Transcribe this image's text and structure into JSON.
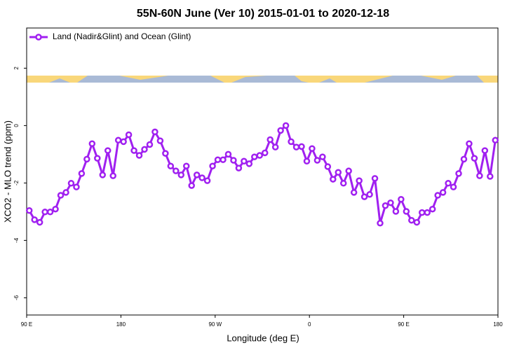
{
  "chart_data": {
    "type": "line",
    "title": "55N-60N June (Ver 10)   2015-01-01 to 2020-12-18",
    "x_label": "Longitude (deg E)",
    "y_label": "XCO2 - MLO trend (ppm)",
    "xlim": [
      90,
      540
    ],
    "ylim": [
      -6.6,
      3.4
    ],
    "xticks": [
      {
        "value": 90,
        "label": "90 E"
      },
      180,
      {
        "value": 270,
        "label": "90 W"
      },
      {
        "value": 360,
        "label": "0"
      },
      {
        "value": 450,
        "label": "90 E"
      },
      {
        "value": 540,
        "label": "180"
      }
    ],
    "yticks": [
      -6,
      -4,
      -2,
      0,
      2
    ],
    "legend": "top-left",
    "x": [
      92.5,
      97.5,
      102.5,
      107.5,
      112.5,
      117.5,
      122.5,
      127.5,
      132.5,
      137.5,
      142.5,
      147.5,
      152.5,
      157.5,
      162.5,
      167.5,
      172.5,
      177.5,
      182.5,
      187.5,
      192.5,
      197.5,
      202.5,
      207.5,
      212.5,
      217.5,
      222.5,
      227.5,
      232.5,
      237.5,
      242.5,
      247.5,
      252.5,
      257.5,
      262.5,
      267.5,
      272.5,
      277.5,
      282.5,
      287.5,
      292.5,
      297.5,
      302.5,
      307.5,
      312.5,
      317.5,
      322.5,
      327.5,
      332.5,
      337.5,
      342.5,
      347.5,
      352.5,
      357.5,
      362.5,
      367.5,
      372.5,
      377.5,
      382.5,
      387.5,
      392.5,
      397.5,
      402.5,
      407.5,
      412.5,
      417.5,
      422.5,
      427.5,
      432.5,
      437.5,
      442.5,
      447.5,
      452.5,
      457.5,
      462.5,
      467.5,
      472.5,
      477.5,
      482.5,
      487.5,
      492.5,
      497.5,
      502.5,
      507.5,
      512.5,
      517.5,
      522.5,
      527.5,
      532.5,
      537.5
    ],
    "series": [
      {
        "name": "Land (Nadir&Glint) and Ocean (Glint)",
        "color": "#a020f0",
        "values": [
          -2.96,
          -3.28,
          -3.37,
          -3.01,
          -3.01,
          -2.91,
          -2.43,
          -2.33,
          -2.01,
          -2.14,
          -1.67,
          -1.17,
          -0.63,
          -1.14,
          -1.72,
          -0.87,
          -1.75,
          -0.51,
          -0.56,
          -0.32,
          -0.87,
          -1.04,
          -0.83,
          -0.66,
          -0.22,
          -0.53,
          -0.97,
          -1.41,
          -1.58,
          -1.72,
          -1.41,
          -2.09,
          -1.72,
          -1.82,
          -1.92,
          -1.41,
          -1.19,
          -1.19,
          -1.0,
          -1.21,
          -1.48,
          -1.24,
          -1.33,
          -1.09,
          -1.04,
          -0.95,
          -0.49,
          -0.75,
          -0.17,
          0,
          -0.56,
          -0.75,
          -0.73,
          -1.24,
          -0.8,
          -1.21,
          -1.09,
          -1.43,
          -1.87,
          -1.63,
          -2.01,
          -1.58,
          -2.33,
          -1.92,
          -2.48,
          -2.4,
          -1.84,
          -3.4,
          -2.79,
          -2.69,
          -2.99,
          -2.57,
          -2.99,
          -3.3,
          -3.37,
          -3.03,
          -3.03,
          -2.91,
          -2.43,
          -2.33,
          -2.01,
          -2.14,
          -1.67,
          -1.17,
          -0.63,
          -1.14,
          -1.75,
          -0.87,
          -1.77,
          -0.51
        ]
      }
    ]
  }
}
